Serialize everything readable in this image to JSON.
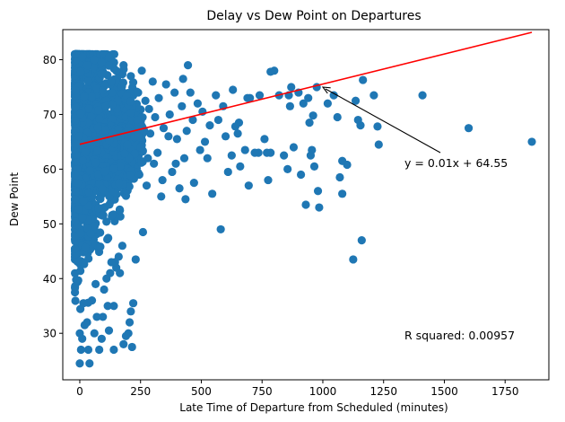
{
  "chart_data": {
    "type": "scatter",
    "title": "Delay vs Dew Point on Departures",
    "xlabel": "Late Time of Departure from Scheduled (minutes)",
    "ylabel": "Dew Point",
    "xlim": [
      -70,
      1930
    ],
    "ylim": [
      21.5,
      85.5
    ],
    "xticks": [
      0,
      250,
      500,
      750,
      1000,
      1250,
      1500,
      1750
    ],
    "yticks": [
      30,
      40,
      50,
      60,
      70,
      80
    ],
    "grid": false,
    "legend": "none",
    "colors": {
      "points": "#1f77b4",
      "regression": "#ff0000"
    },
    "series": [
      {
        "values": [
          [
            1860,
            65
          ],
          [
            1600,
            67.5
          ],
          [
            1410,
            73.5
          ],
          [
            1230,
            64.5
          ],
          [
            1225,
            67.8
          ],
          [
            1210,
            73.5
          ],
          [
            1165,
            76.3
          ],
          [
            1160,
            47
          ],
          [
            1155,
            68
          ],
          [
            1145,
            69
          ],
          [
            1135,
            72.5
          ],
          [
            1125,
            43.5
          ],
          [
            1100,
            60.8
          ],
          [
            1080,
            61.5
          ],
          [
            1080,
            55.5
          ],
          [
            1070,
            58.5
          ],
          [
            1060,
            69.5
          ],
          [
            1045,
            73.5
          ],
          [
            1020,
            72
          ],
          [
            985,
            53
          ],
          [
            980,
            56
          ],
          [
            975,
            75
          ],
          [
            965,
            60.5
          ],
          [
            960,
            69.8
          ],
          [
            955,
            63.5
          ],
          [
            950,
            62.5
          ],
          [
            945,
            68.5
          ],
          [
            940,
            73
          ],
          [
            930,
            53.5
          ],
          [
            920,
            72
          ],
          [
            910,
            59
          ],
          [
            900,
            74
          ],
          [
            880,
            64
          ],
          [
            870,
            75
          ],
          [
            865,
            71.5
          ],
          [
            860,
            73.5
          ],
          [
            855,
            60
          ],
          [
            840,
            62.5
          ],
          [
            820,
            73.5
          ],
          [
            800,
            78
          ],
          [
            785,
            77.8
          ],
          [
            785,
            63
          ],
          [
            775,
            58
          ],
          [
            770,
            63
          ],
          [
            760,
            65.5
          ],
          [
            740,
            73.5
          ],
          [
            735,
            63
          ],
          [
            720,
            63
          ],
          [
            700,
            73
          ],
          [
            695,
            57
          ],
          [
            690,
            73
          ],
          [
            680,
            63.5
          ],
          [
            660,
            60.5
          ],
          [
            655,
            68.5
          ],
          [
            650,
            66.5
          ],
          [
            640,
            67.8
          ],
          [
            630,
            74.5
          ],
          [
            625,
            62.5
          ],
          [
            610,
            59.5
          ],
          [
            600,
            66
          ],
          [
            590,
            71.5
          ],
          [
            580,
            49
          ],
          [
            570,
            69
          ],
          [
            560,
            73.5
          ],
          [
            545,
            55.5
          ],
          [
            535,
            68
          ],
          [
            525,
            62
          ],
          [
            515,
            65
          ],
          [
            505,
            70.5
          ],
          [
            495,
            63.5
          ],
          [
            485,
            72
          ],
          [
            470,
            57.5
          ],
          [
            465,
            69
          ],
          [
            455,
            74
          ],
          [
            445,
            79
          ],
          [
            440,
            67
          ],
          [
            435,
            54.5
          ],
          [
            430,
            62
          ],
          [
            425,
            76.5
          ],
          [
            420,
            71.5
          ],
          [
            410,
            56.5
          ],
          [
            400,
            65.5
          ],
          [
            395,
            61
          ],
          [
            390,
            74
          ],
          [
            380,
            59.5
          ],
          [
            370,
            70
          ],
          [
            365,
            66
          ],
          [
            355,
            75.5
          ],
          [
            345,
            67.5
          ],
          [
            340,
            58
          ],
          [
            335,
            55
          ],
          [
            325,
            73
          ],
          [
            320,
            63
          ],
          [
            310,
            69.5
          ],
          [
            305,
            61
          ],
          [
            300,
            76
          ],
          [
            290,
            66.5
          ],
          [
            285,
            71
          ],
          [
            280,
            62
          ],
          [
            275,
            57
          ],
          [
            270,
            72.5
          ],
          [
            265,
            67
          ],
          [
            260,
            48.5
          ],
          [
            255,
            78
          ],
          [
            250,
            64
          ],
          [
            245,
            59
          ],
          [
            240,
            74
          ],
          [
            235,
            69
          ],
          [
            230,
            43.5
          ],
          [
            220,
            35.5
          ],
          [
            215,
            27.5
          ],
          [
            210,
            34
          ],
          [
            205,
            32
          ],
          [
            200,
            30
          ],
          [
            190,
            29.5
          ],
          [
            180,
            28
          ],
          [
            175,
            46
          ],
          [
            165,
            41
          ],
          [
            160,
            44
          ],
          [
            150,
            42
          ],
          [
            145,
            43
          ],
          [
            140,
            27
          ],
          [
            140,
            35
          ],
          [
            130,
            43
          ],
          [
            125,
            41
          ],
          [
            120,
            30.5
          ],
          [
            115,
            35
          ],
          [
            110,
            40
          ],
          [
            100,
            38
          ],
          [
            95,
            33
          ],
          [
            90,
            29
          ],
          [
            80,
            27
          ],
          [
            70,
            33
          ],
          [
            65,
            39
          ],
          [
            60,
            30
          ],
          [
            50,
            36
          ],
          [
            40,
            24.5
          ],
          [
            35,
            27
          ],
          [
            30,
            32
          ],
          [
            20,
            31.5
          ],
          [
            15,
            35.5
          ],
          [
            10,
            29
          ],
          [
            5,
            27
          ],
          [
            0,
            24.5
          ],
          [
            0,
            30
          ],
          [
            0,
            81
          ],
          [
            10,
            80.5
          ],
          [
            30,
            79
          ],
          [
            60,
            80
          ],
          [
            90,
            79.5
          ],
          [
            120,
            80.5
          ],
          [
            150,
            78
          ],
          [
            180,
            79
          ],
          [
            210,
            77
          ]
        ]
      }
    ],
    "dense_region": {
      "description_values": "bulk of points between 0 and 250 minutes",
      "x_range": [
        -20,
        260
      ],
      "y_range": [
        33,
        81
      ]
    },
    "regression": {
      "slope": 0.011,
      "intercept": 64.55,
      "x_range": [
        0,
        1860
      ]
    },
    "annotations": {
      "equation": "y = 0.01x + 64.55",
      "r_squared": "R squared: 0.00957",
      "arrow_to": [
        1000,
        75
      ]
    }
  }
}
